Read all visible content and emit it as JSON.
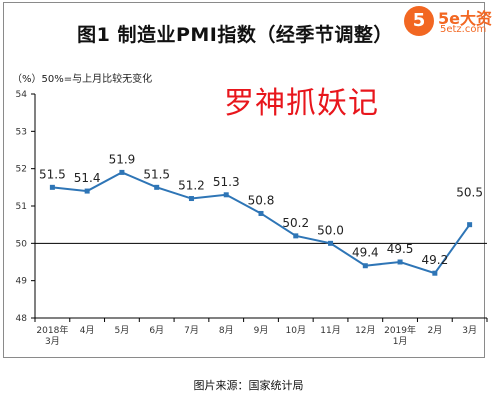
{
  "title": "图1  制造业PMI指数（经季节调整）",
  "note": "（%）50%=与上月比较无变化",
  "watermark": "罗神抓妖记",
  "logo": {
    "mark": "5",
    "text": "5e大资",
    "sub": "5etz.com"
  },
  "source": "图片来源：国家统计局",
  "colors": {
    "line": "#2e75b6",
    "watermark": "#e8161c",
    "logo": "#f26722",
    "axis": "#000000"
  },
  "chart_data": {
    "type": "line",
    "title": "图1  制造业PMI指数（经季节调整）",
    "xlabel": "",
    "ylabel": "（%）",
    "ylim": [
      48,
      54
    ],
    "yticks": [
      48,
      49,
      50,
      51,
      52,
      53,
      54
    ],
    "reference_line": 50,
    "grid": false,
    "categories": [
      [
        "2018年",
        "3月"
      ],
      [
        "4月"
      ],
      [
        "5月"
      ],
      [
        "6月"
      ],
      [
        "7月"
      ],
      [
        "8月"
      ],
      [
        "9月"
      ],
      [
        "10月"
      ],
      [
        "11月"
      ],
      [
        "12月"
      ],
      [
        "2019年",
        "1月"
      ],
      [
        "2月"
      ],
      [
        "3月"
      ]
    ],
    "values": [
      51.5,
      51.4,
      51.9,
      51.5,
      51.2,
      51.3,
      50.8,
      50.2,
      50.0,
      49.4,
      49.5,
      49.2,
      50.5
    ],
    "labels": [
      "51.5",
      "51.4",
      "51.9",
      "51.5",
      "51.2",
      "51.3",
      "50.8",
      "50.2",
      "50.0",
      "49.4",
      "49.5",
      "49.2",
      "50.5"
    ]
  }
}
